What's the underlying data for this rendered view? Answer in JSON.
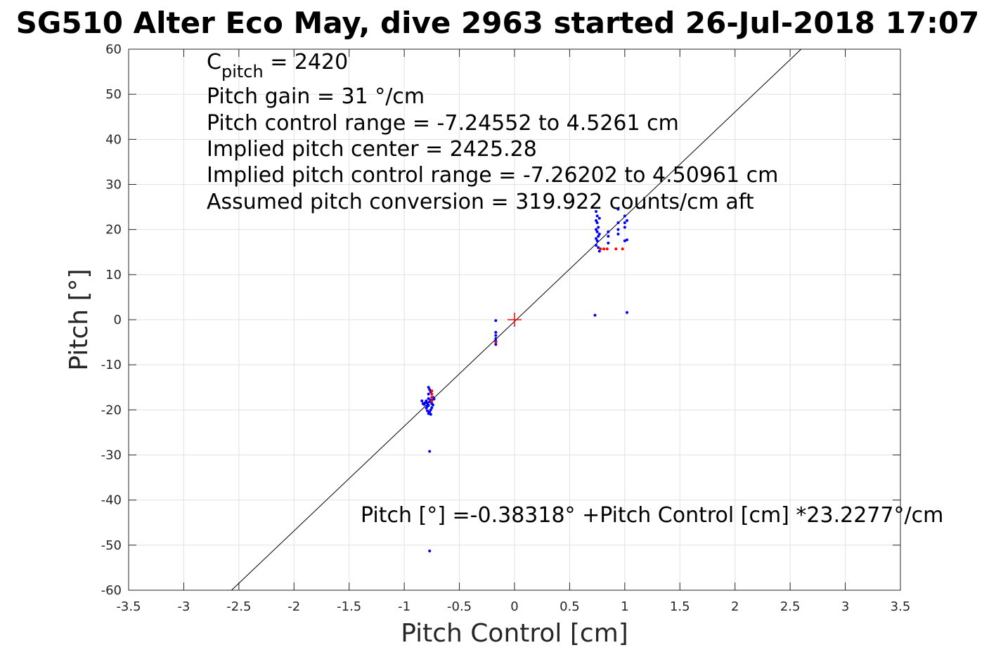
{
  "chart_data": {
    "type": "scatter",
    "title": "SG510 Alter Eco May, dive 2963 started 26-Jul-2018 17:07",
    "xlabel": "Pitch Control [cm]",
    "ylabel": "Pitch [°]",
    "xlim": [
      -3.5,
      3.5
    ],
    "ylim": [
      -60,
      60
    ],
    "xticks": [
      -3.5,
      -3,
      -2.5,
      -2,
      -1.5,
      -1,
      -0.5,
      0,
      0.5,
      1,
      1.5,
      2,
      2.5,
      3,
      3.5
    ],
    "xtick_labels": [
      "-3.5",
      "-3",
      "-2.5",
      "-2",
      "-1.5",
      "-1",
      "-0.5",
      "0",
      "0.5",
      "1",
      "1.5",
      "2",
      "2.5",
      "3",
      "3.5"
    ],
    "yticks": [
      -60,
      -50,
      -40,
      -30,
      -20,
      -10,
      0,
      10,
      20,
      30,
      40,
      50,
      60
    ],
    "ytick_labels": [
      "-60",
      "-50",
      "-40",
      "-30",
      "-20",
      "-10",
      "0",
      "10",
      "20",
      "30",
      "40",
      "50",
      "60"
    ],
    "grid": true,
    "annotations": {
      "cpitch_main": "C",
      "cpitch_sub": "pitch",
      "cpitch_value": " = 2420",
      "pitch_gain": "Pitch gain = 31 °/cm",
      "control_range": "Pitch control range = -7.24552 to 4.5261 cm",
      "implied_center": "Implied pitch center = 2425.28",
      "implied_range": "Implied pitch control range = -7.26202 to 4.50961 cm",
      "conversion": "Assumed pitch conversion = 319.922 counts/cm aft",
      "fit_equation": "Pitch [°] =-0.38318° +Pitch Control [cm] *23.2277°/cm"
    },
    "fit_line": {
      "intercept": -0.38318,
      "slope": 23.2277,
      "color": "#000000"
    },
    "center_marker": {
      "x": 0,
      "y": 0,
      "color": "#ff0000"
    },
    "series": [
      {
        "color": "#0000ff",
        "points": [
          [
            -0.8,
            -18.0
          ],
          [
            -0.79,
            -18.5
          ],
          [
            -0.78,
            -19.0
          ],
          [
            -0.78,
            -17.5
          ],
          [
            -0.77,
            -18.2
          ],
          [
            -0.76,
            -17.8
          ],
          [
            -0.75,
            -18.6
          ],
          [
            -0.74,
            -17.2
          ],
          [
            -0.76,
            -16.0
          ],
          [
            -0.77,
            -15.5
          ],
          [
            -0.78,
            -16.5
          ],
          [
            -0.75,
            -19.5
          ],
          [
            -0.76,
            -20.0
          ],
          [
            -0.77,
            -20.5
          ],
          [
            -0.78,
            -20.8
          ],
          [
            -0.79,
            -19.2
          ],
          [
            -0.81,
            -18.4
          ],
          [
            -0.82,
            -18.8
          ],
          [
            -0.83,
            -18.6
          ],
          [
            -0.84,
            -18.0
          ],
          [
            -0.8,
            -19.6
          ],
          [
            -0.79,
            -20.2
          ],
          [
            -0.76,
            -21.0
          ],
          [
            -0.74,
            -18.9
          ],
          [
            -0.73,
            -17.6
          ],
          [
            -0.78,
            -15.0
          ],
          [
            -0.77,
            -29.2
          ],
          [
            -0.77,
            -51.3
          ],
          [
            -0.17,
            -0.2
          ],
          [
            -0.17,
            -2.8
          ],
          [
            -0.17,
            -3.5
          ],
          [
            -0.17,
            -4.2
          ],
          [
            -0.17,
            -4.8
          ],
          [
            -0.17,
            -5.5
          ],
          [
            0.74,
            24.0
          ],
          [
            0.74,
            22.0
          ],
          [
            0.74,
            20.0
          ],
          [
            0.74,
            18.0
          ],
          [
            0.74,
            16.5
          ],
          [
            0.75,
            21.5
          ],
          [
            0.75,
            19.5
          ],
          [
            0.75,
            17.5
          ],
          [
            0.76,
            20.5
          ],
          [
            0.76,
            18.5
          ],
          [
            0.76,
            16.0
          ],
          [
            0.77,
            22.5
          ],
          [
            0.77,
            19.0
          ],
          [
            0.77,
            15.2
          ],
          [
            0.75,
            23.0
          ],
          [
            0.85,
            19.5
          ],
          [
            0.85,
            18.5
          ],
          [
            0.85,
            17.0
          ],
          [
            0.94,
            24.5
          ],
          [
            0.94,
            21.5
          ],
          [
            0.94,
            20.0
          ],
          [
            0.94,
            19.0
          ],
          [
            1.0,
            23.0
          ],
          [
            1.0,
            21.5
          ],
          [
            1.0,
            20.5
          ],
          [
            1.02,
            22.0
          ],
          [
            1.0,
            17.5
          ],
          [
            1.02,
            17.7
          ],
          [
            0.73,
            1.0
          ],
          [
            1.02,
            1.6
          ]
        ]
      },
      {
        "color": "#ff0000",
        "points": [
          [
            -0.75,
            -15.8
          ],
          [
            -0.75,
            -16.5
          ],
          [
            -0.75,
            -17.2
          ],
          [
            -0.75,
            -18.0
          ],
          [
            -0.17,
            -5.0
          ],
          [
            0.78,
            15.7
          ],
          [
            0.81,
            15.7
          ],
          [
            0.84,
            15.7
          ],
          [
            0.92,
            15.7
          ],
          [
            0.98,
            15.7
          ]
        ]
      }
    ]
  }
}
